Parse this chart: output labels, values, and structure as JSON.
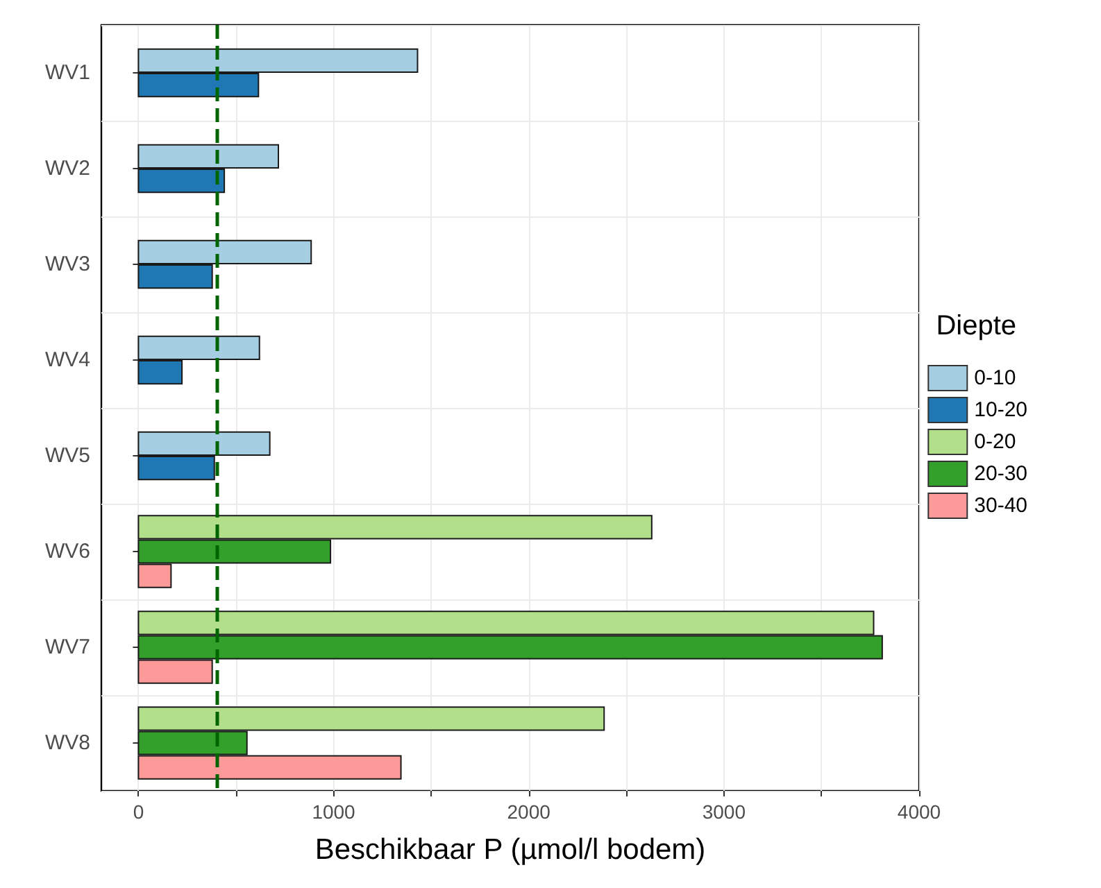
{
  "chart_data": {
    "type": "bar",
    "orientation": "horizontal",
    "xlabel": "Beschikbaar P (µmol/l bodem)",
    "legend_title": "Diepte",
    "categories": [
      "WV1",
      "WV2",
      "WV3",
      "WV4",
      "WV5",
      "WV6",
      "WV7",
      "WV8"
    ],
    "series": [
      {
        "name": "0-10",
        "color": "#a6cee3",
        "values": [
          1430,
          717,
          885,
          620,
          673,
          null,
          null,
          null
        ]
      },
      {
        "name": "10-20",
        "color": "#1f78b4",
        "values": [
          615,
          440,
          378,
          223,
          389,
          null,
          null,
          null
        ]
      },
      {
        "name": "0-20",
        "color": "#b2df8a",
        "values": [
          null,
          null,
          null,
          null,
          null,
          2630,
          3767,
          2386
        ]
      },
      {
        "name": "20-30",
        "color": "#33a02c",
        "values": [
          null,
          null,
          null,
          null,
          null,
          984,
          3811,
          556
        ]
      },
      {
        "name": "30-40",
        "color": "#fb9a99",
        "values": [
          null,
          null,
          null,
          null,
          null,
          167,
          378,
          1345
        ]
      }
    ],
    "xlim": [
      -190,
      4000
    ],
    "xticks": [
      0,
      {
        "value": 500,
        "label": null
      },
      1000,
      {
        "value": 1500,
        "label": null
      },
      2000,
      {
        "value": 2500,
        "label": null
      },
      3000,
      {
        "value": 3500,
        "label": null
      },
      4000
    ],
    "ref_lines": [
      {
        "axis": "x",
        "value": 400,
        "color": "#006400",
        "line_style": "dashed"
      }
    ],
    "grid": true,
    "legend": "right"
  }
}
